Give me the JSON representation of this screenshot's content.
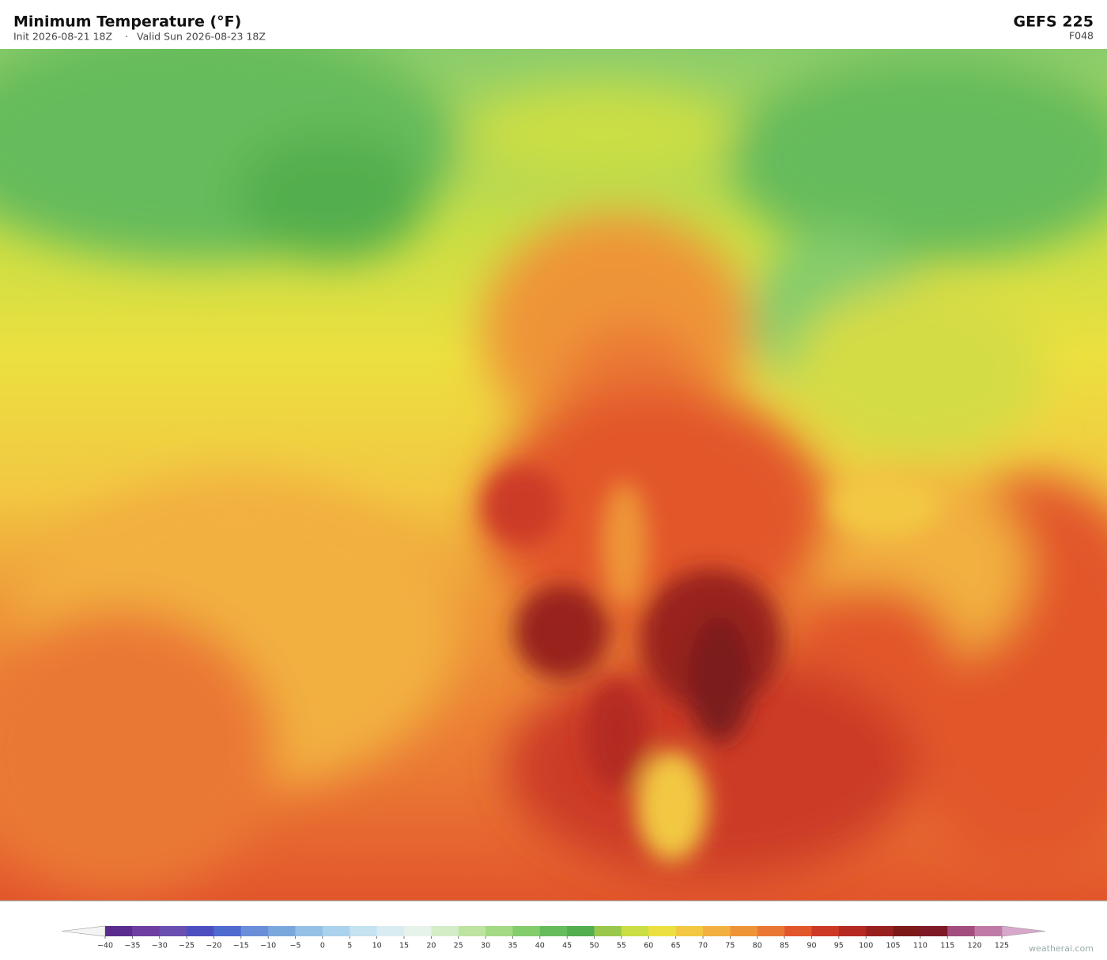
{
  "header": {
    "title": "Minimum Temperature  (°F)",
    "init": "Init 2026-08-21 18Z",
    "separator": "·",
    "valid": "Valid Sun 2026-08-23 18Z",
    "model": "GEFS  225",
    "forecast_hour": "F048"
  },
  "colorbar": {
    "ticks": [
      {
        "value": -40,
        "label": "−40"
      },
      {
        "value": -35,
        "label": "−35"
      },
      {
        "value": -30,
        "label": "−30"
      },
      {
        "value": -25,
        "label": "−25"
      },
      {
        "value": -20,
        "label": "−20"
      },
      {
        "value": -15,
        "label": "−15"
      },
      {
        "value": -10,
        "label": "−10"
      },
      {
        "value": -5,
        "label": "−5"
      },
      0,
      5,
      10,
      15,
      20,
      25,
      30,
      35,
      40,
      45,
      50,
      55,
      60,
      65,
      70,
      75,
      80,
      85,
      90,
      95,
      100,
      105,
      110,
      115,
      120,
      125
    ],
    "colors": [
      "#5a2c8e",
      "#6e3fa0",
      "#6a4fb0",
      "#4d4fc0",
      "#4f6bd0",
      "#6a8fd8",
      "#7aa8dc",
      "#95c0e6",
      "#aad2ec",
      "#c4e2f0",
      "#d8ecf2",
      "#e6f2ea",
      "#d4ecc8",
      "#bde3a0",
      "#a3d884",
      "#84cc6c",
      "#66bb5c",
      "#52ae4e",
      "#9ac84c",
      "#cade44",
      "#ece040",
      "#f2c842",
      "#f2b040",
      "#ee9438",
      "#ea7834",
      "#e2562c",
      "#cc3a26",
      "#b42a22",
      "#98201e",
      "#7c1a1a",
      "#7e1a28",
      "#a34c7e",
      "#c07aa8"
    ],
    "under_color": "#f4f4f4",
    "over_color": "#d8a8cc"
  },
  "footer": {
    "watermark": "weatherai.com"
  }
}
